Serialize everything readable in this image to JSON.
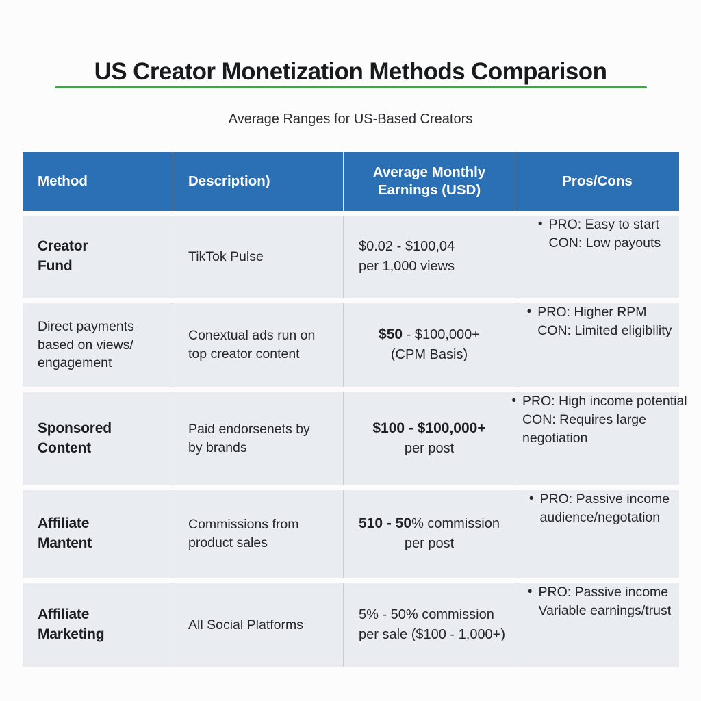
{
  "title": "US Creator Monetization Methods Comparison",
  "subtitle": "Average Ranges for US-Based Creators",
  "colors": {
    "header_bg": "#2b6fb4",
    "header_text": "#ffffff",
    "row_bg": "#e9edf2",
    "divider_green": "#4a9e52",
    "body_text": "#26262a"
  },
  "table": {
    "headers": [
      "Method",
      "Description)",
      "Average Monthly\nEarnings (USD)",
      "Pros/Cons"
    ],
    "rows": [
      {
        "method": "Creator\nFund",
        "method_bold": true,
        "description": "TikTok Pulse",
        "earnings": {
          "segments": [
            {
              "text": "$0.02 - $100,04",
              "bold": false
            }
          ],
          "line2": "per 1,000 views",
          "align": "left"
        },
        "pros_lines": [
          "PRO: Easy to start",
          "CON: Low payouts"
        ]
      },
      {
        "method": "Direct payments\nbased on views/\nengagement",
        "method_bold": false,
        "description": "Conextual ads run on\ntop creator content",
        "earnings": {
          "segments": [
            {
              "text": "$50",
              "bold": true
            },
            {
              "text": " - $100,000+",
              "bold": false
            }
          ],
          "line2": "(CPM Basis)",
          "align": "center"
        },
        "pros_lines": [
          "PRO: Higher RPM",
          "CON: Limited eligibility"
        ]
      },
      {
        "method": "Sponsored\nContent",
        "method_bold": true,
        "description": "Paid endorsenets by\nby brands",
        "earnings": {
          "segments": [
            {
              "text": "$100 - $100,000+",
              "bold": true
            }
          ],
          "line2": "per post",
          "align": "center"
        },
        "pros_lines": [
          "PRO: High income potential",
          "CON: Requires large",
          "negotiation"
        ]
      },
      {
        "method": "Affiliate\nMantent",
        "method_bold": true,
        "description": "Commissions from\nproduct sales",
        "earnings": {
          "segments": [
            {
              "text": "510 - 50",
              "bold": true
            },
            {
              "text": "% commission",
              "bold": false
            }
          ],
          "line2": "per post",
          "align": "center"
        },
        "pros_lines": [
          "PRO: Passive income",
          "audience/negotation"
        ]
      },
      {
        "method": "Affiliate\nMarketing",
        "method_bold": true,
        "description": "All Social Platforms",
        "earnings": {
          "segments": [
            {
              "text": "5% - 50% commission",
              "bold": false
            }
          ],
          "line2": "per sale ($100 - 1,000+)",
          "align": "left"
        },
        "pros_lines": [
          "PRO: Passive income",
          "Variable earnings/trust"
        ]
      }
    ]
  }
}
